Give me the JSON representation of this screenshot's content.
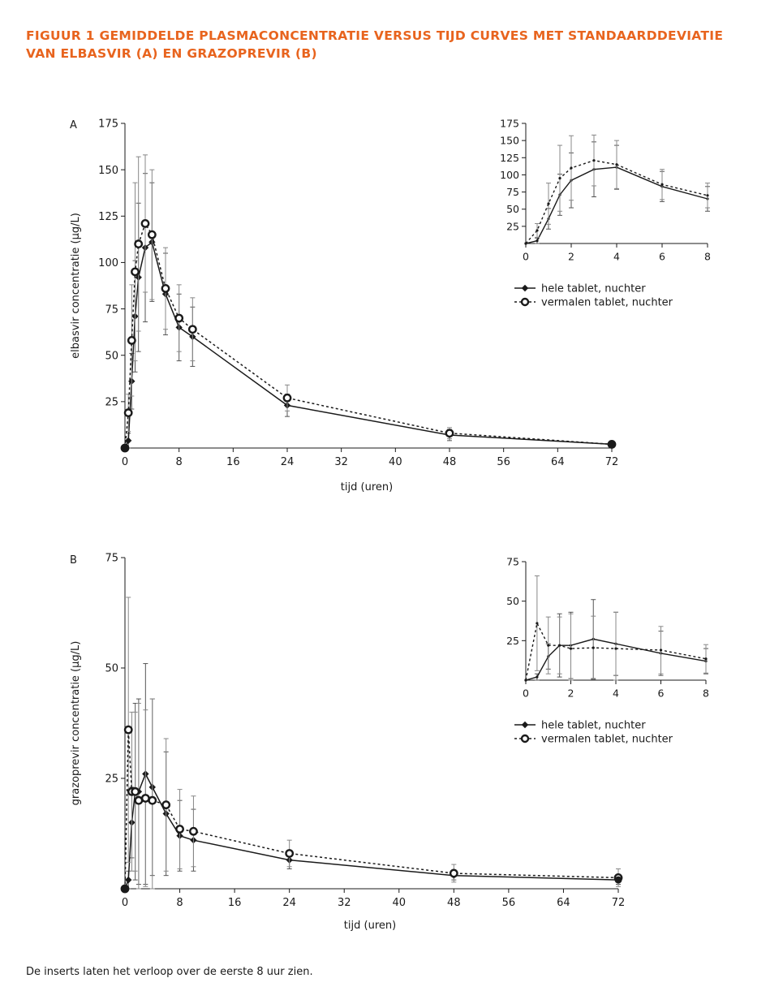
{
  "figure": {
    "title_line1": "FIGUUR 1  GEMIDDELDE PLASMACONCENTRATIE VERSUS TIJD CURVES MET STANDAARDDEVIATIE",
    "title_line2": "VAN ELBASVIR (A) EN GRAZOPREVIR (B)",
    "title_color": "#e8641e",
    "footnote": "De inserts laten het verloop over de eerste 8 uur zien."
  },
  "chart_data": [
    {
      "id": "A",
      "type": "line",
      "panel_label": "A",
      "xlabel": "tijd (uren)",
      "ylabel": "elbasvir concentratie (µg/L)",
      "xlim": [
        0,
        72
      ],
      "ylim": [
        0,
        175
      ],
      "xticks": [
        0,
        8,
        16,
        24,
        32,
        40,
        48,
        56,
        64,
        72
      ],
      "yticks": [
        25,
        50,
        75,
        100,
        125,
        150,
        175
      ],
      "legend": [
        "hele tablet, nuchter",
        "vermalen tablet, nuchter"
      ],
      "series": [
        {
          "name": "hele tablet, nuchter",
          "style": "solid",
          "marker": "diamond",
          "x": [
            0,
            0.5,
            1,
            1.5,
            2,
            3,
            4,
            6,
            8,
            10,
            24,
            48,
            72
          ],
          "y": [
            0,
            4,
            36,
            71,
            92,
            108,
            111,
            83,
            65,
            60,
            23,
            7,
            2
          ],
          "err": [
            0,
            4,
            15,
            30,
            40,
            40,
            32,
            22,
            18,
            16,
            6,
            3,
            1
          ]
        },
        {
          "name": "vermalen tablet, nuchter",
          "style": "dotted",
          "marker": "circle",
          "x": [
            0,
            0.5,
            1,
            1.5,
            2,
            3,
            4,
            6,
            8,
            10,
            24,
            48,
            72
          ],
          "y": [
            0,
            19,
            58,
            95,
            110,
            121,
            115,
            86,
            70,
            64,
            27,
            8,
            2
          ],
          "err": [
            0,
            10,
            30,
            48,
            47,
            37,
            35,
            22,
            18,
            17,
            7,
            3,
            1
          ]
        }
      ],
      "inset": {
        "xlim": [
          0,
          8
        ],
        "ylim": [
          0,
          175
        ],
        "xticks": [
          0,
          2,
          4,
          6,
          8
        ],
        "yticks": [
          25,
          50,
          75,
          100,
          125,
          150,
          175
        ]
      }
    },
    {
      "id": "B",
      "type": "line",
      "panel_label": "B",
      "xlabel": "tijd (uren)",
      "ylabel": "grazoprevir concentratie (µg/L)",
      "xlim": [
        0,
        72
      ],
      "ylim": [
        0,
        75
      ],
      "xticks": [
        0,
        8,
        16,
        24,
        32,
        40,
        48,
        56,
        64,
        72
      ],
      "yticks": [
        25,
        50,
        75
      ],
      "legend": [
        "hele tablet, nuchter",
        "vermalen tablet, nuchter"
      ],
      "series": [
        {
          "name": "hele tablet, nuchter",
          "style": "solid",
          "marker": "diamond",
          "x": [
            0,
            0.5,
            1,
            1.5,
            2,
            3,
            4,
            6,
            8,
            10,
            24,
            48,
            72
          ],
          "y": [
            0,
            2,
            15,
            22,
            22,
            26,
            23,
            17,
            12,
            11,
            6.5,
            3,
            2
          ],
          "err": [
            0,
            2,
            8,
            20,
            21,
            25,
            20,
            14,
            8,
            7,
            2,
            1,
            1
          ]
        },
        {
          "name": "vermalen tablet, nuchter",
          "style": "dotted",
          "marker": "circle",
          "x": [
            0,
            0.5,
            1,
            1.5,
            2,
            3,
            4,
            6,
            8,
            10,
            24,
            48,
            72
          ],
          "y": [
            0,
            36,
            22,
            22,
            20,
            20.5,
            20,
            19,
            13.5,
            13,
            8,
            3.5,
            2.5
          ],
          "err": [
            0,
            30,
            18,
            18,
            22,
            20,
            23,
            15,
            9,
            8,
            3,
            2,
            2
          ]
        }
      ],
      "inset": {
        "xlim": [
          0,
          8
        ],
        "ylim": [
          0,
          75
        ],
        "xticks": [
          0,
          2,
          4,
          6,
          8
        ],
        "yticks": [
          25,
          50,
          75
        ]
      }
    }
  ]
}
